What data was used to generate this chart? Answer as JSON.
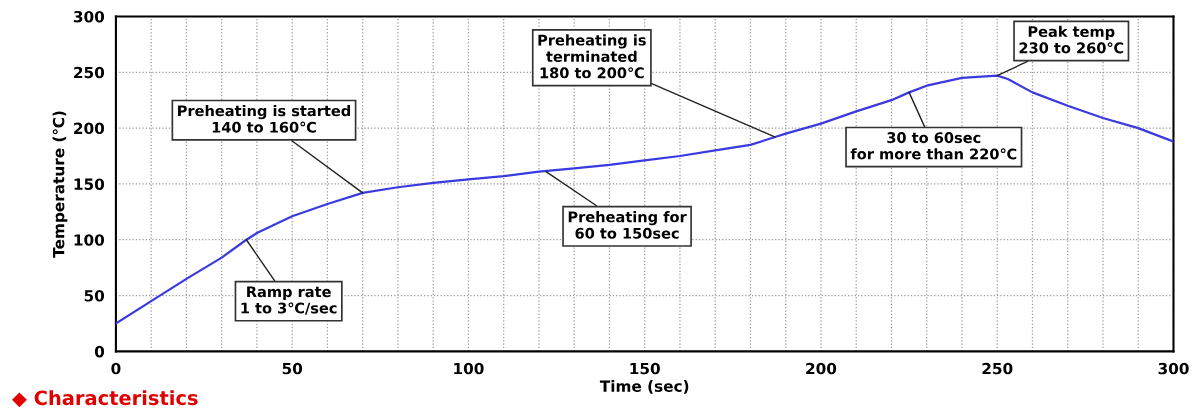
{
  "chart_data": {
    "type": "line",
    "xlabel": "Time (sec)",
    "ylabel": "Temperature (℃)",
    "x": [
      0,
      10,
      20,
      30,
      37,
      40,
      50,
      60,
      70,
      80,
      90,
      100,
      110,
      120,
      130,
      140,
      150,
      160,
      170,
      180,
      187,
      190,
      200,
      210,
      220,
      225,
      230,
      240,
      250,
      253,
      260,
      270,
      280,
      290,
      300
    ],
    "series": [
      {
        "color": "#3a3ae0",
        "values": [
          25,
          45,
          65,
          84,
          100,
          106,
          121,
          132,
          142,
          147,
          151,
          154,
          157,
          161,
          164,
          167,
          171,
          175,
          180,
          185,
          192,
          195,
          204,
          215,
          225,
          232,
          238,
          245,
          247,
          244,
          232,
          220,
          209,
          200,
          188
        ]
      }
    ],
    "xlim": [
      0,
      300
    ],
    "ylim": [
      0,
      300
    ],
    "xticks": [
      0,
      {
        "value": 10,
        "label": null
      },
      {
        "value": 20,
        "label": null
      },
      {
        "value": 30,
        "label": null
      },
      {
        "value": 40,
        "label": null
      },
      50,
      {
        "value": 60,
        "label": null
      },
      {
        "value": 70,
        "label": null
      },
      {
        "value": 80,
        "label": null
      },
      {
        "value": 90,
        "label": null
      },
      100,
      {
        "value": 110,
        "label": null
      },
      {
        "value": 120,
        "label": null
      },
      {
        "value": 130,
        "label": null
      },
      {
        "value": 140,
        "label": null
      },
      150,
      {
        "value": 160,
        "label": null
      },
      {
        "value": 170,
        "label": null
      },
      {
        "value": 180,
        "label": null
      },
      {
        "value": 190,
        "label": null
      },
      200,
      {
        "value": 210,
        "label": null
      },
      {
        "value": 220,
        "label": null
      },
      {
        "value": 230,
        "label": null
      },
      {
        "value": 240,
        "label": null
      },
      250,
      {
        "value": 260,
        "label": null
      },
      {
        "value": 270,
        "label": null
      },
      {
        "value": 280,
        "label": null
      },
      {
        "value": 290,
        "label": null
      },
      300
    ],
    "yticks": [
      0,
      50,
      100,
      150,
      200,
      250,
      300
    ],
    "grid": true,
    "marker": "none",
    "line_style": "solid",
    "annotations": [
      {
        "text": "Ramp rate\n1 to 3℃/sec",
        "x": 37,
        "y": 100
      },
      {
        "text": "Preheating is started\n140 to 160℃",
        "x": 70,
        "y": 142
      },
      {
        "text": "Preheating for\n60 to 150sec",
        "x": 122,
        "y": 161
      },
      {
        "text": "Preheating is\nterminated\n180 to 200℃",
        "x": 187,
        "y": 192
      },
      {
        "text": "30 to 60sec\nfor more than 220℃",
        "x": 225,
        "y": 232
      },
      {
        "text": "Peak temp\n230 to 260℃",
        "x": 250,
        "y": 247
      },
      "◆ Characteristics"
    ]
  }
}
